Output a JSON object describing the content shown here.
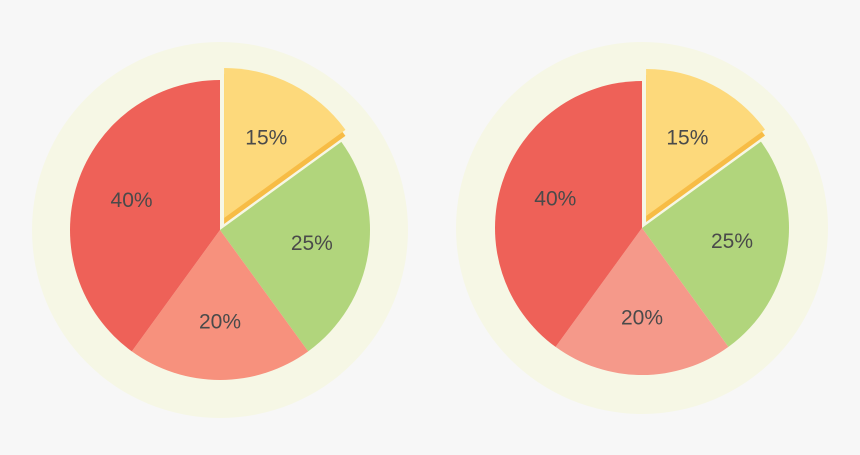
{
  "chart_data": [
    {
      "type": "pie",
      "values": [
        15,
        25,
        20,
        40
      ],
      "value_labels": [
        "15%",
        "25%",
        "20%",
        "40%"
      ],
      "colors": [
        "#fdd97b",
        "#b1d57c",
        "#f7917d",
        "#ee6158"
      ],
      "explode_color": "#f7bc45"
    },
    {
      "type": "pie",
      "values": [
        15,
        25,
        20,
        40
      ],
      "value_labels": [
        "15%",
        "25%",
        "20%",
        "40%"
      ],
      "colors": [
        "#fdd97b",
        "#b1d57c",
        "#f5998a",
        "#ee6158"
      ],
      "explode_color": "#f7bc45"
    }
  ]
}
